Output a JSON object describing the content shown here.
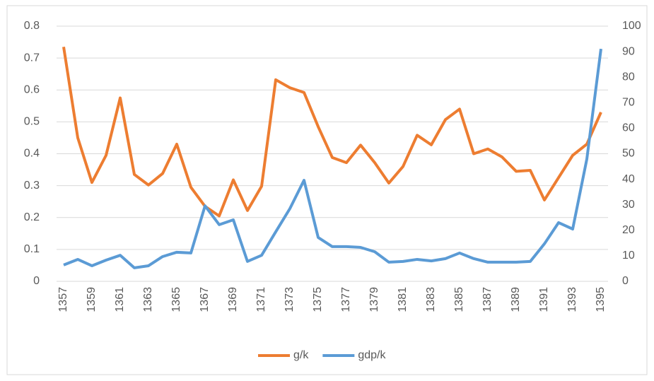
{
  "chart_data": {
    "type": "line",
    "categories": [
      "1357",
      null,
      "1359",
      null,
      "1361",
      null,
      "1363",
      null,
      "1365",
      null,
      "1367",
      null,
      "1369",
      null,
      "1371",
      null,
      "1373",
      null,
      "1375",
      null,
      "1377",
      null,
      "1379",
      null,
      "1381",
      null,
      "1383",
      null,
      "1385",
      null,
      "1387",
      null,
      "1389",
      null,
      "1391",
      null,
      "1393",
      null,
      "1395"
    ],
    "series": [
      {
        "name": "g/k",
        "color": "#ed7d31",
        "values": [
          0.735,
          0.45,
          0.31,
          0.395,
          0.575,
          0.335,
          0.302,
          0.338,
          0.43,
          0.295,
          0.235,
          0.205,
          0.318,
          0.222,
          0.298,
          0.632,
          0.607,
          0.592,
          0.485,
          0.388,
          0.372,
          0.427,
          0.372,
          0.308,
          0.36,
          0.458,
          0.428,
          0.507,
          0.54,
          0.4,
          0.415,
          0.39,
          0.345,
          0.348,
          0.255,
          0.325,
          0.395,
          0.43,
          0.53
        ]
      },
      {
        "name": "gdp/k",
        "color": "#5b9bd5",
        "axis": "y2",
        "values": [
          6.4,
          8.6,
          6.1,
          8.3,
          10.2,
          5.3,
          6.1,
          9.7,
          11.4,
          11.1,
          29.6,
          22.2,
          24.1,
          7.8,
          10.2,
          19.4,
          28.5,
          39.6,
          17.2,
          13.6,
          13.6,
          13.3,
          11.6,
          7.5,
          7.8,
          8.6,
          8.0,
          8.9,
          11.1,
          8.9,
          7.5,
          7.5,
          7.5,
          7.8,
          14.7,
          23.0,
          20.5,
          47.9,
          91.1
        ]
      }
    ],
    "ylim": [
      0,
      0.8
    ],
    "yticks": [
      0,
      0.1,
      0.2,
      0.3,
      0.4,
      0.5,
      0.6,
      0.7,
      0.8
    ],
    "y2lim": [
      0,
      100
    ],
    "y2ticks": [
      0,
      10,
      20,
      30,
      40,
      50,
      60,
      70,
      80,
      90,
      100
    ],
    "grid": true,
    "legend": "bottom"
  }
}
